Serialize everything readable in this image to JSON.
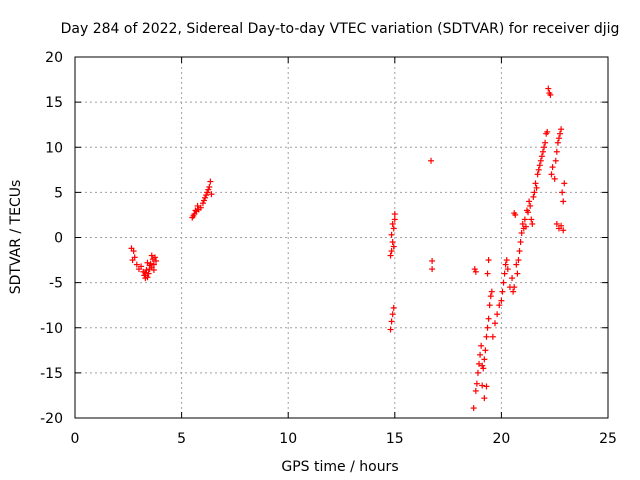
{
  "chart_data": {
    "type": "scatter",
    "title": "Day 284 of 2022, Sidereal Day-to-day VTEC variation (SDTVAR) for receiver djig",
    "xlabel": "GPS time / hours",
    "ylabel": "SDTVAR / TECUs",
    "xlim": [
      0,
      25
    ],
    "ylim": [
      -20,
      20
    ],
    "xticks": [
      0,
      5,
      10,
      15,
      20,
      25
    ],
    "yticks": [
      -20,
      -15,
      -10,
      -5,
      0,
      5,
      10,
      15,
      20
    ],
    "grid": true,
    "marker": "+",
    "color": "#ff0000",
    "series": [
      {
        "name": "SDTVAR",
        "x": [
          2.65,
          2.7,
          2.75,
          2.8,
          2.9,
          3.0,
          3.1,
          3.2,
          3.25,
          3.3,
          3.35,
          3.4,
          3.45,
          3.5,
          3.55,
          3.6,
          3.65,
          3.7,
          3.75,
          3.8,
          3.3,
          3.4,
          3.5,
          3.6,
          3.7,
          5.5,
          5.6,
          5.7,
          5.8,
          5.9,
          6.0,
          6.1,
          6.2,
          6.3,
          6.35,
          6.4,
          5.55,
          5.65,
          5.75,
          6.05,
          6.15,
          6.25,
          14.8,
          14.85,
          14.9,
          14.95,
          15.0,
          15.0,
          14.85,
          14.9,
          14.95,
          14.8,
          14.85,
          14.9,
          14.95,
          16.7,
          16.75,
          16.75,
          18.7,
          18.8,
          18.85,
          18.9,
          18.95,
          19.0,
          19.05,
          19.1,
          19.15,
          19.2,
          19.25,
          19.3,
          19.35,
          19.4,
          19.45,
          19.5,
          19.55,
          19.6,
          19.7,
          19.8,
          19.9,
          20.0,
          20.05,
          20.1,
          20.15,
          20.2,
          20.25,
          20.3,
          20.4,
          20.5,
          20.55,
          20.6,
          20.7,
          20.75,
          20.8,
          20.85,
          20.9,
          20.95,
          21.0,
          21.05,
          21.1,
          21.15,
          21.2,
          21.25,
          21.3,
          21.35,
          21.4,
          21.45,
          21.5,
          21.55,
          21.6,
          21.65,
          21.7,
          21.75,
          21.8,
          21.85,
          21.9,
          21.95,
          22.0,
          22.05,
          22.1,
          22.15,
          22.2,
          22.25,
          22.3,
          22.35,
          22.4,
          22.5,
          22.55,
          22.6,
          22.65,
          22.7,
          22.75,
          22.8,
          22.85,
          22.9,
          22.95,
          22.6,
          22.7,
          22.8,
          22.9,
          19.35,
          19.4,
          19.1,
          19.2,
          19.3,
          18.75,
          18.8,
          20.65,
          20.6
        ],
        "y": [
          -1.2,
          -2.5,
          -1.5,
          -2.2,
          -3.0,
          -3.5,
          -3.2,
          -3.8,
          -4.2,
          -4.5,
          -3.6,
          -2.8,
          -4.0,
          -3.5,
          -2.9,
          -3.3,
          -2.4,
          -3.0,
          -2.2,
          -2.6,
          -3.9,
          -4.4,
          -3.1,
          -2.0,
          -3.6,
          2.2,
          2.6,
          2.9,
          3.1,
          3.3,
          3.8,
          4.4,
          5.0,
          5.6,
          6.2,
          4.8,
          2.4,
          3.0,
          3.5,
          4.1,
          4.7,
          5.3,
          -10.2,
          -9.3,
          -8.5,
          -7.8,
          2.0,
          2.6,
          -1.5,
          -0.5,
          1.0,
          -2.0,
          0.3,
          1.5,
          -1.0,
          8.5,
          -2.6,
          -3.5,
          -18.9,
          -17.0,
          -16.2,
          -15.0,
          -14.0,
          -13.0,
          -12.0,
          -16.4,
          -14.5,
          -13.5,
          -12.5,
          -11.0,
          -10.0,
          -9.0,
          -7.5,
          -6.5,
          -6.0,
          -11.0,
          -9.5,
          -8.5,
          -7.5,
          -7.0,
          -6.0,
          -5.0,
          -4.0,
          -3.0,
          -2.5,
          -3.5,
          -5.5,
          -4.5,
          -6.0,
          -5.5,
          -3.0,
          -4.0,
          -2.5,
          -1.5,
          -0.5,
          0.5,
          1.5,
          1.0,
          2.0,
          1.2,
          3.0,
          2.8,
          4.0,
          3.5,
          2.0,
          1.5,
          4.5,
          5.0,
          6.0,
          5.5,
          7.0,
          7.5,
          8.0,
          8.5,
          9.0,
          9.5,
          10.0,
          10.5,
          11.5,
          11.7,
          16.5,
          16.0,
          15.8,
          7.0,
          7.8,
          6.5,
          8.5,
          9.5,
          10.5,
          11.0,
          11.5,
          12.0,
          5.0,
          4.0,
          6.0,
          1.5,
          1.0,
          1.3,
          0.8,
          -4.0,
          -2.5,
          -14.2,
          -17.8,
          -16.5,
          -3.5,
          -3.8,
          2.5,
          2.7
        ]
      }
    ]
  }
}
